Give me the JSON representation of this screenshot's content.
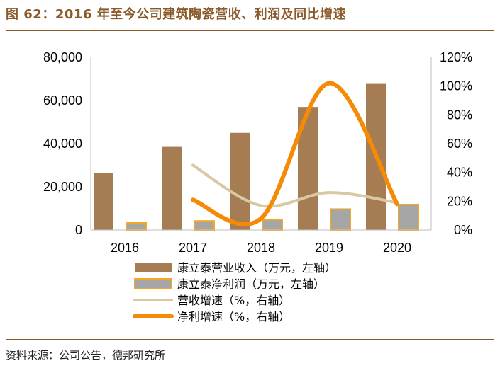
{
  "header": {
    "title": "图 62：2016 年至今公司建筑陶瓷营收、利润及同比增速"
  },
  "footer": {
    "source": "资料来源：公司公告，德邦研究所"
  },
  "chart_data": {
    "type": "bar",
    "categories": [
      "2016",
      "2017",
      "2018",
      "2019",
      "2020"
    ],
    "left_axis": {
      "ylim": [
        0,
        80000
      ],
      "ticks": [
        "0",
        "20,000",
        "40,000",
        "60,000",
        "80,000"
      ]
    },
    "right_axis": {
      "ylim": [
        0,
        120
      ],
      "ticks": [
        "0%",
        "20%",
        "40%",
        "60%",
        "80%",
        "100%",
        "120%"
      ]
    },
    "series": [
      {
        "name": "康立泰营业收入（万元，左轴）",
        "type": "bar",
        "axis": "left",
        "color": "#a67c52",
        "values": [
          26500,
          38500,
          45000,
          57000,
          68000
        ]
      },
      {
        "name": "康立泰净利润（万元，左轴）",
        "type": "bar",
        "axis": "left",
        "color": "#a6a6a6",
        "edge_color": "#f5a623",
        "values": [
          3300,
          4200,
          4800,
          9700,
          11800
        ]
      },
      {
        "name": "营收增速（%，右轴）",
        "type": "line",
        "axis": "right",
        "color": "#d9c9a3",
        "values": [
          null,
          45,
          17,
          26,
          19
        ]
      },
      {
        "name": "净利增速（%，右轴）",
        "type": "line",
        "axis": "right",
        "color": "#f58a07",
        "values": [
          null,
          21,
          8,
          102,
          18
        ]
      }
    ],
    "legend_position": "bottom"
  }
}
